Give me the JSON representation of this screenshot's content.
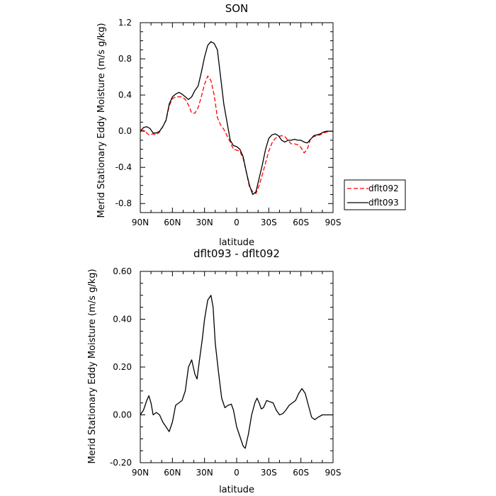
{
  "chart_data": [
    {
      "type": "line",
      "title": "SON",
      "xlabel": "latitude",
      "ylabel": "Merid Stationary Eddy Moisture (m/s g/kg)",
      "xlim": [
        90,
        -90
      ],
      "ylim": [
        -0.9,
        1.2
      ],
      "x_ticks": [
        90,
        60,
        30,
        0,
        -30,
        -60,
        -90
      ],
      "x_tick_labels": [
        "90N",
        "60N",
        "30N",
        "0",
        "30S",
        "60S",
        "90S"
      ],
      "y_ticks": [
        1.2,
        0.8,
        0.4,
        0.0,
        -0.4,
        -0.8
      ],
      "y_tick_labels": [
        "1.2",
        "0.8",
        "0.4",
        "0.0",
        "-0.4",
        "-0.8"
      ],
      "grid": false,
      "legend": "outside-right",
      "series": [
        {
          "name": "dflt092",
          "color": "#ff0000",
          "dash": "dashed",
          "points": [
            [
              90,
              0.0
            ],
            [
              87,
              0.01
            ],
            [
              84,
              -0.02
            ],
            [
              82,
              -0.04
            ],
            [
              78,
              -0.03
            ],
            [
              75,
              -0.04
            ],
            [
              72,
              -0.01
            ],
            [
              69,
              0.05
            ],
            [
              66,
              0.12
            ],
            [
              63,
              0.28
            ],
            [
              60,
              0.36
            ],
            [
              57,
              0.38
            ],
            [
              54,
              0.38
            ],
            [
              51,
              0.38
            ],
            [
              48,
              0.35
            ],
            [
              45,
              0.29
            ],
            [
              42,
              0.2
            ],
            [
              39,
              0.2
            ],
            [
              36,
              0.26
            ],
            [
              33,
              0.38
            ],
            [
              30,
              0.52
            ],
            [
              27,
              0.61
            ],
            [
              24,
              0.56
            ],
            [
              21,
              0.4
            ],
            [
              18,
              0.15
            ],
            [
              15,
              0.07
            ],
            [
              12,
              0.02
            ],
            [
              9,
              -0.05
            ],
            [
              6,
              -0.12
            ],
            [
              3,
              -0.2
            ],
            [
              0,
              -0.21
            ],
            [
              -3,
              -0.22
            ],
            [
              -6,
              -0.3
            ],
            [
              -9,
              -0.45
            ],
            [
              -12,
              -0.62
            ],
            [
              -15,
              -0.67
            ],
            [
              -18,
              -0.69
            ],
            [
              -21,
              -0.6
            ],
            [
              -24,
              -0.48
            ],
            [
              -27,
              -0.35
            ],
            [
              -30,
              -0.22
            ],
            [
              -33,
              -0.13
            ],
            [
              -36,
              -0.08
            ],
            [
              -39,
              -0.06
            ],
            [
              -42,
              -0.05
            ],
            [
              -45,
              -0.06
            ],
            [
              -48,
              -0.1
            ],
            [
              -51,
              -0.14
            ],
            [
              -54,
              -0.14
            ],
            [
              -57,
              -0.15
            ],
            [
              -60,
              -0.18
            ],
            [
              -63,
              -0.24
            ],
            [
              -66,
              -0.2
            ],
            [
              -69,
              -0.08
            ],
            [
              -72,
              -0.06
            ],
            [
              -75,
              -0.05
            ],
            [
              -78,
              -0.04
            ],
            [
              -81,
              -0.02
            ],
            [
              -84,
              -0.01
            ],
            [
              -87,
              0.0
            ],
            [
              -90,
              0.0
            ]
          ]
        },
        {
          "name": "dflt093",
          "color": "#000000",
          "dash": "solid",
          "points": [
            [
              90,
              0.0
            ],
            [
              87,
              0.04
            ],
            [
              84,
              0.05
            ],
            [
              81,
              0.03
            ],
            [
              78,
              -0.02
            ],
            [
              75,
              -0.02
            ],
            [
              72,
              0.0
            ],
            [
              69,
              0.05
            ],
            [
              66,
              0.12
            ],
            [
              63,
              0.3
            ],
            [
              60,
              0.38
            ],
            [
              57,
              0.41
            ],
            [
              54,
              0.43
            ],
            [
              51,
              0.41
            ],
            [
              48,
              0.38
            ],
            [
              45,
              0.35
            ],
            [
              42,
              0.38
            ],
            [
              39,
              0.45
            ],
            [
              36,
              0.5
            ],
            [
              33,
              0.65
            ],
            [
              30,
              0.82
            ],
            [
              27,
              0.95
            ],
            [
              24,
              0.99
            ],
            [
              21,
              0.97
            ],
            [
              18,
              0.9
            ],
            [
              15,
              0.6
            ],
            [
              12,
              0.3
            ],
            [
              9,
              0.1
            ],
            [
              6,
              -0.1
            ],
            [
              3,
              -0.16
            ],
            [
              0,
              -0.17
            ],
            [
              -3,
              -0.2
            ],
            [
              -6,
              -0.28
            ],
            [
              -9,
              -0.45
            ],
            [
              -12,
              -0.6
            ],
            [
              -15,
              -0.7
            ],
            [
              -18,
              -0.67
            ],
            [
              -21,
              -0.52
            ],
            [
              -24,
              -0.37
            ],
            [
              -27,
              -0.2
            ],
            [
              -30,
              -0.08
            ],
            [
              -33,
              -0.04
            ],
            [
              -36,
              -0.03
            ],
            [
              -39,
              -0.05
            ],
            [
              -42,
              -0.1
            ],
            [
              -45,
              -0.12
            ],
            [
              -48,
              -0.1
            ],
            [
              -51,
              -0.1
            ],
            [
              -54,
              -0.09
            ],
            [
              -57,
              -0.1
            ],
            [
              -60,
              -0.1
            ],
            [
              -63,
              -0.12
            ],
            [
              -66,
              -0.13
            ],
            [
              -69,
              -0.09
            ],
            [
              -72,
              -0.05
            ],
            [
              -75,
              -0.04
            ],
            [
              -78,
              -0.03
            ],
            [
              -81,
              -0.01
            ],
            [
              -84,
              0.0
            ],
            [
              -87,
              0.0
            ],
            [
              -90,
              0.0
            ]
          ]
        }
      ]
    },
    {
      "type": "line",
      "title": "dflt093 - dflt092",
      "xlabel": "latitude",
      "ylabel": "Merid Stationary Eddy Moisture (m/s g/kg)",
      "xlim": [
        90,
        -90
      ],
      "ylim": [
        -0.2,
        0.6
      ],
      "x_ticks": [
        90,
        60,
        30,
        0,
        -30,
        -60,
        -90
      ],
      "x_tick_labels": [
        "90N",
        "60N",
        "30N",
        "0",
        "30S",
        "60S",
        "90S"
      ],
      "y_ticks": [
        0.6,
        0.4,
        0.2,
        0.0,
        -0.2
      ],
      "y_tick_labels": [
        "0.60",
        "0.40",
        "0.20",
        "0.00",
        "-0.20"
      ],
      "grid": false,
      "series": [
        {
          "name": "",
          "color": "#000000",
          "dash": "solid",
          "points": [
            [
              90,
              0.0
            ],
            [
              87,
              0.02
            ],
            [
              84,
              0.06
            ],
            [
              82,
              0.08
            ],
            [
              80,
              0.05
            ],
            [
              78,
              0.0
            ],
            [
              75,
              0.01
            ],
            [
              72,
              0.0
            ],
            [
              69,
              -0.03
            ],
            [
              66,
              -0.05
            ],
            [
              63,
              -0.07
            ],
            [
              60,
              -0.03
            ],
            [
              57,
              0.04
            ],
            [
              54,
              0.05
            ],
            [
              51,
              0.06
            ],
            [
              48,
              0.1
            ],
            [
              45,
              0.2
            ],
            [
              42,
              0.23
            ],
            [
              39,
              0.17
            ],
            [
              37,
              0.15
            ],
            [
              35,
              0.22
            ],
            [
              32,
              0.32
            ],
            [
              30,
              0.4
            ],
            [
              27,
              0.48
            ],
            [
              24,
              0.5
            ],
            [
              22,
              0.45
            ],
            [
              20,
              0.3
            ],
            [
              17,
              0.18
            ],
            [
              14,
              0.07
            ],
            [
              11,
              0.03
            ],
            [
              8,
              0.04
            ],
            [
              5,
              0.045
            ],
            [
              3,
              0.02
            ],
            [
              0,
              -0.05
            ],
            [
              -3,
              -0.09
            ],
            [
              -6,
              -0.13
            ],
            [
              -8,
              -0.14
            ],
            [
              -11,
              -0.08
            ],
            [
              -14,
              0.0
            ],
            [
              -17,
              0.05
            ],
            [
              -19,
              0.07
            ],
            [
              -21,
              0.05
            ],
            [
              -23,
              0.025
            ],
            [
              -25,
              0.03
            ],
            [
              -28,
              0.06
            ],
            [
              -31,
              0.055
            ],
            [
              -34,
              0.05
            ],
            [
              -37,
              0.02
            ],
            [
              -40,
              0.0
            ],
            [
              -43,
              0.005
            ],
            [
              -46,
              0.02
            ],
            [
              -49,
              0.04
            ],
            [
              -52,
              0.05
            ],
            [
              -55,
              0.06
            ],
            [
              -58,
              0.09
            ],
            [
              -61,
              0.11
            ],
            [
              -64,
              0.09
            ],
            [
              -67,
              0.04
            ],
            [
              -70,
              -0.01
            ],
            [
              -73,
              -0.02
            ],
            [
              -76,
              -0.01
            ],
            [
              -80,
              0.0
            ],
            [
              -84,
              0.0
            ],
            [
              -90,
              0.0
            ]
          ]
        }
      ]
    }
  ]
}
